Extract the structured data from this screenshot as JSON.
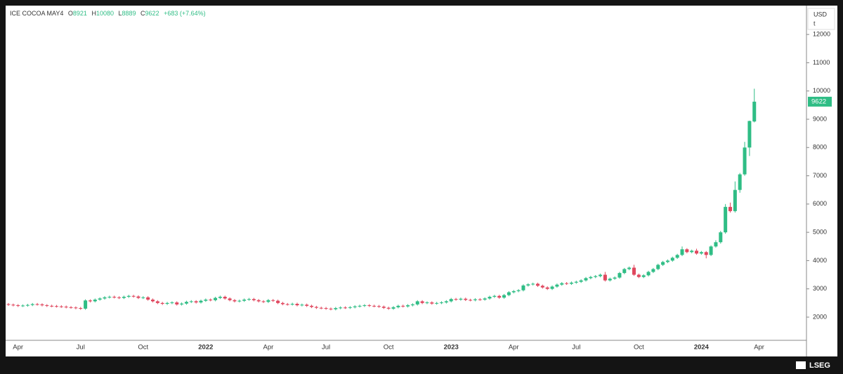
{
  "header": {
    "symbol": "ICE COCOA MAY4",
    "letters": [
      "O",
      "H",
      "L",
      "C"
    ],
    "change": "+683 (+7.64%)",
    "currency": "USD",
    "unit": "t",
    "logo": "LSEG"
  },
  "chart_data": {
    "type": "candlestick",
    "up_color": "#2fbd85",
    "down_color": "#e0475e",
    "categories": [
      null,
      null,
      "Apr",
      null,
      null,
      null,
      null,
      null,
      null,
      null,
      null,
      null,
      null,
      null,
      null,
      "Jul",
      null,
      null,
      null,
      null,
      null,
      null,
      null,
      null,
      null,
      null,
      null,
      null,
      "Oct",
      null,
      null,
      null,
      null,
      null,
      null,
      null,
      null,
      null,
      null,
      null,
      null,
      "2022",
      null,
      null,
      null,
      null,
      null,
      null,
      null,
      null,
      null,
      null,
      null,
      null,
      "Apr",
      null,
      null,
      null,
      null,
      null,
      null,
      null,
      null,
      null,
      null,
      null,
      "Jul",
      null,
      null,
      null,
      null,
      null,
      null,
      null,
      null,
      null,
      null,
      null,
      null,
      "Oct",
      null,
      null,
      null,
      null,
      null,
      null,
      null,
      null,
      null,
      null,
      null,
      null,
      "2023",
      null,
      null,
      null,
      null,
      null,
      null,
      null,
      null,
      null,
      null,
      null,
      null,
      "Apr",
      null,
      null,
      null,
      null,
      null,
      null,
      null,
      null,
      null,
      null,
      null,
      null,
      "Jul",
      null,
      null,
      null,
      null,
      null,
      null,
      null,
      null,
      null,
      null,
      null,
      null,
      "Oct",
      null,
      null,
      null,
      null,
      null,
      null,
      null,
      null,
      null,
      null,
      null,
      null,
      "2024",
      null,
      null,
      null,
      null,
      null,
      null,
      null,
      null,
      null,
      null,
      null,
      "Apr"
    ],
    "open": [
      2460,
      2440,
      2420,
      2400,
      2410,
      2430,
      2460,
      2450,
      2420,
      2400,
      2390,
      2380,
      2370,
      2350,
      2340,
      2320,
      2300,
      2590,
      2560,
      2620,
      2660,
      2700,
      2720,
      2700,
      2680,
      2720,
      2750,
      2730,
      2680,
      2700,
      2620,
      2560,
      2500,
      2470,
      2500,
      2520,
      2450,
      2480,
      2540,
      2560,
      2520,
      2580,
      2620,
      2600,
      2680,
      2720,
      2660,
      2600,
      2560,
      2580,
      2620,
      2640,
      2600,
      2560,
      2540,
      2600,
      2580,
      2500,
      2460,
      2450,
      2470,
      2420,
      2440,
      2400,
      2360,
      2330,
      2320,
      2300,
      2280,
      2320,
      2340,
      2330,
      2350,
      2380,
      2400,
      2420,
      2400,
      2390,
      2370,
      2330,
      2300,
      2350,
      2400,
      2380,
      2420,
      2450,
      2560,
      2500,
      2520,
      2480,
      2500,
      2520,
      2560,
      2640,
      2620,
      2650,
      2610,
      2600,
      2630,
      2620,
      2660,
      2720,
      2750,
      2690,
      2780,
      2880,
      2920,
      2950,
      3120,
      3160,
      3180,
      3110,
      3050,
      3000,
      3080,
      3150,
      3200,
      3180,
      3220,
      3250,
      3300,
      3380,
      3420,
      3450,
      3500,
      3300,
      3360,
      3400,
      3560,
      3700,
      3750,
      3500,
      3420,
      3480,
      3600,
      3700,
      3850,
      3950,
      4000,
      4100,
      4200,
      4400,
      4300,
      4350,
      4250,
      4300,
      4200,
      4500,
      4650,
      5000,
      5900,
      5750,
      6500,
      7050,
      8000,
      8921,
      null
    ],
    "high": [
      2500,
      2480,
      2460,
      2450,
      2470,
      2500,
      2500,
      2490,
      2460,
      2440,
      2430,
      2420,
      2410,
      2390,
      2380,
      2360,
      2630,
      2630,
      2660,
      2700,
      2740,
      2760,
      2760,
      2740,
      2760,
      2790,
      2790,
      2770,
      2740,
      2740,
      2660,
      2600,
      2540,
      2540,
      2560,
      2560,
      2520,
      2580,
      2600,
      2600,
      2620,
      2660,
      2660,
      2720,
      2760,
      2760,
      2700,
      2640,
      2620,
      2660,
      2680,
      2680,
      2640,
      2600,
      2640,
      2640,
      2620,
      2540,
      2500,
      2510,
      2510,
      2480,
      2480,
      2440,
      2400,
      2370,
      2360,
      2340,
      2360,
      2380,
      2380,
      2390,
      2420,
      2440,
      2460,
      2460,
      2440,
      2430,
      2410,
      2370,
      2390,
      2440,
      2440,
      2460,
      2490,
      2600,
      2600,
      2560,
      2560,
      2540,
      2560,
      2600,
      2680,
      2680,
      2690,
      2690,
      2650,
      2670,
      2670,
      2700,
      2760,
      2790,
      2790,
      2820,
      2920,
      2960,
      2990,
      3160,
      3200,
      3220,
      3220,
      3150,
      3090,
      3120,
      3190,
      3240,
      3240,
      3260,
      3290,
      3340,
      3420,
      3460,
      3490,
      3540,
      3600,
      3400,
      3440,
      3600,
      3740,
      3790,
      3850,
      3540,
      3520,
      3640,
      3740,
      3890,
      3990,
      4040,
      4140,
      4240,
      4500,
      4440,
      4390,
      4420,
      4340,
      4340,
      4540,
      4720,
      5050,
      6000,
      6050,
      6800,
      7100,
      8200,
      8950,
      10080,
      null
    ],
    "low": [
      2400,
      2380,
      2360,
      2360,
      2370,
      2390,
      2410,
      2380,
      2360,
      2350,
      2340,
      2330,
      2310,
      2300,
      2280,
      2260,
      2260,
      2520,
      2520,
      2580,
      2620,
      2660,
      2660,
      2640,
      2640,
      2680,
      2690,
      2640,
      2640,
      2580,
      2520,
      2460,
      2430,
      2430,
      2460,
      2410,
      2410,
      2440,
      2500,
      2480,
      2480,
      2540,
      2560,
      2560,
      2640,
      2620,
      2560,
      2520,
      2520,
      2540,
      2580,
      2560,
      2520,
      2500,
      2500,
      2540,
      2460,
      2420,
      2410,
      2410,
      2380,
      2380,
      2360,
      2320,
      2290,
      2280,
      2260,
      2240,
      2240,
      2280,
      2290,
      2290,
      2310,
      2340,
      2360,
      2360,
      2350,
      2330,
      2290,
      2260,
      2260,
      2310,
      2340,
      2340,
      2380,
      2410,
      2460,
      2460,
      2440,
      2440,
      2460,
      2480,
      2520,
      2580,
      2580,
      2570,
      2560,
      2560,
      2580,
      2580,
      2620,
      2680,
      2650,
      2650,
      2740,
      2840,
      2880,
      2910,
      3080,
      3120,
      3070,
      3010,
      2960,
      2960,
      3040,
      3110,
      3140,
      3140,
      3180,
      3210,
      3260,
      3340,
      3380,
      3410,
      3260,
      3260,
      3320,
      3360,
      3520,
      3660,
      3460,
      3380,
      3380,
      3440,
      3560,
      3660,
      3810,
      3910,
      3960,
      4060,
      4160,
      4260,
      4260,
      4210,
      4210,
      4080,
      4160,
      4460,
      4600,
      4950,
      5700,
      5700,
      6400,
      7000,
      7700,
      8889,
      null
    ],
    "close": [
      2440,
      2420,
      2400,
      2410,
      2430,
      2460,
      2450,
      2420,
      2400,
      2390,
      2380,
      2370,
      2350,
      2340,
      2320,
      2300,
      2590,
      2560,
      2620,
      2660,
      2700,
      2720,
      2700,
      2680,
      2720,
      2750,
      2730,
      2680,
      2700,
      2620,
      2560,
      2500,
      2470,
      2500,
      2520,
      2450,
      2480,
      2540,
      2560,
      2520,
      2580,
      2620,
      2600,
      2680,
      2720,
      2660,
      2600,
      2560,
      2580,
      2620,
      2640,
      2600,
      2560,
      2540,
      2600,
      2580,
      2500,
      2460,
      2450,
      2470,
      2420,
      2440,
      2400,
      2360,
      2330,
      2320,
      2300,
      2280,
      2320,
      2340,
      2330,
      2350,
      2380,
      2400,
      2420,
      2400,
      2390,
      2370,
      2330,
      2300,
      2350,
      2400,
      2380,
      2420,
      2450,
      2560,
      2500,
      2520,
      2480,
      2500,
      2520,
      2560,
      2640,
      2620,
      2650,
      2610,
      2600,
      2630,
      2620,
      2660,
      2720,
      2750,
      2690,
      2780,
      2880,
      2920,
      2950,
      3120,
      3160,
      3180,
      3110,
      3050,
      3000,
      3080,
      3150,
      3200,
      3180,
      3220,
      3250,
      3300,
      3380,
      3420,
      3450,
      3500,
      3300,
      3360,
      3400,
      3560,
      3700,
      3750,
      3500,
      3420,
      3480,
      3600,
      3700,
      3850,
      3950,
      4000,
      4100,
      4200,
      4400,
      4300,
      4350,
      4250,
      4300,
      4200,
      4500,
      4650,
      5000,
      5900,
      5750,
      6500,
      7050,
      8000,
      8939,
      9622,
      null
    ],
    "ylim": [
      1180,
      13020
    ],
    "yticks": [
      2000,
      3000,
      4000,
      5000,
      6000,
      7000,
      8000,
      9000,
      10000,
      11000,
      12000
    ]
  }
}
